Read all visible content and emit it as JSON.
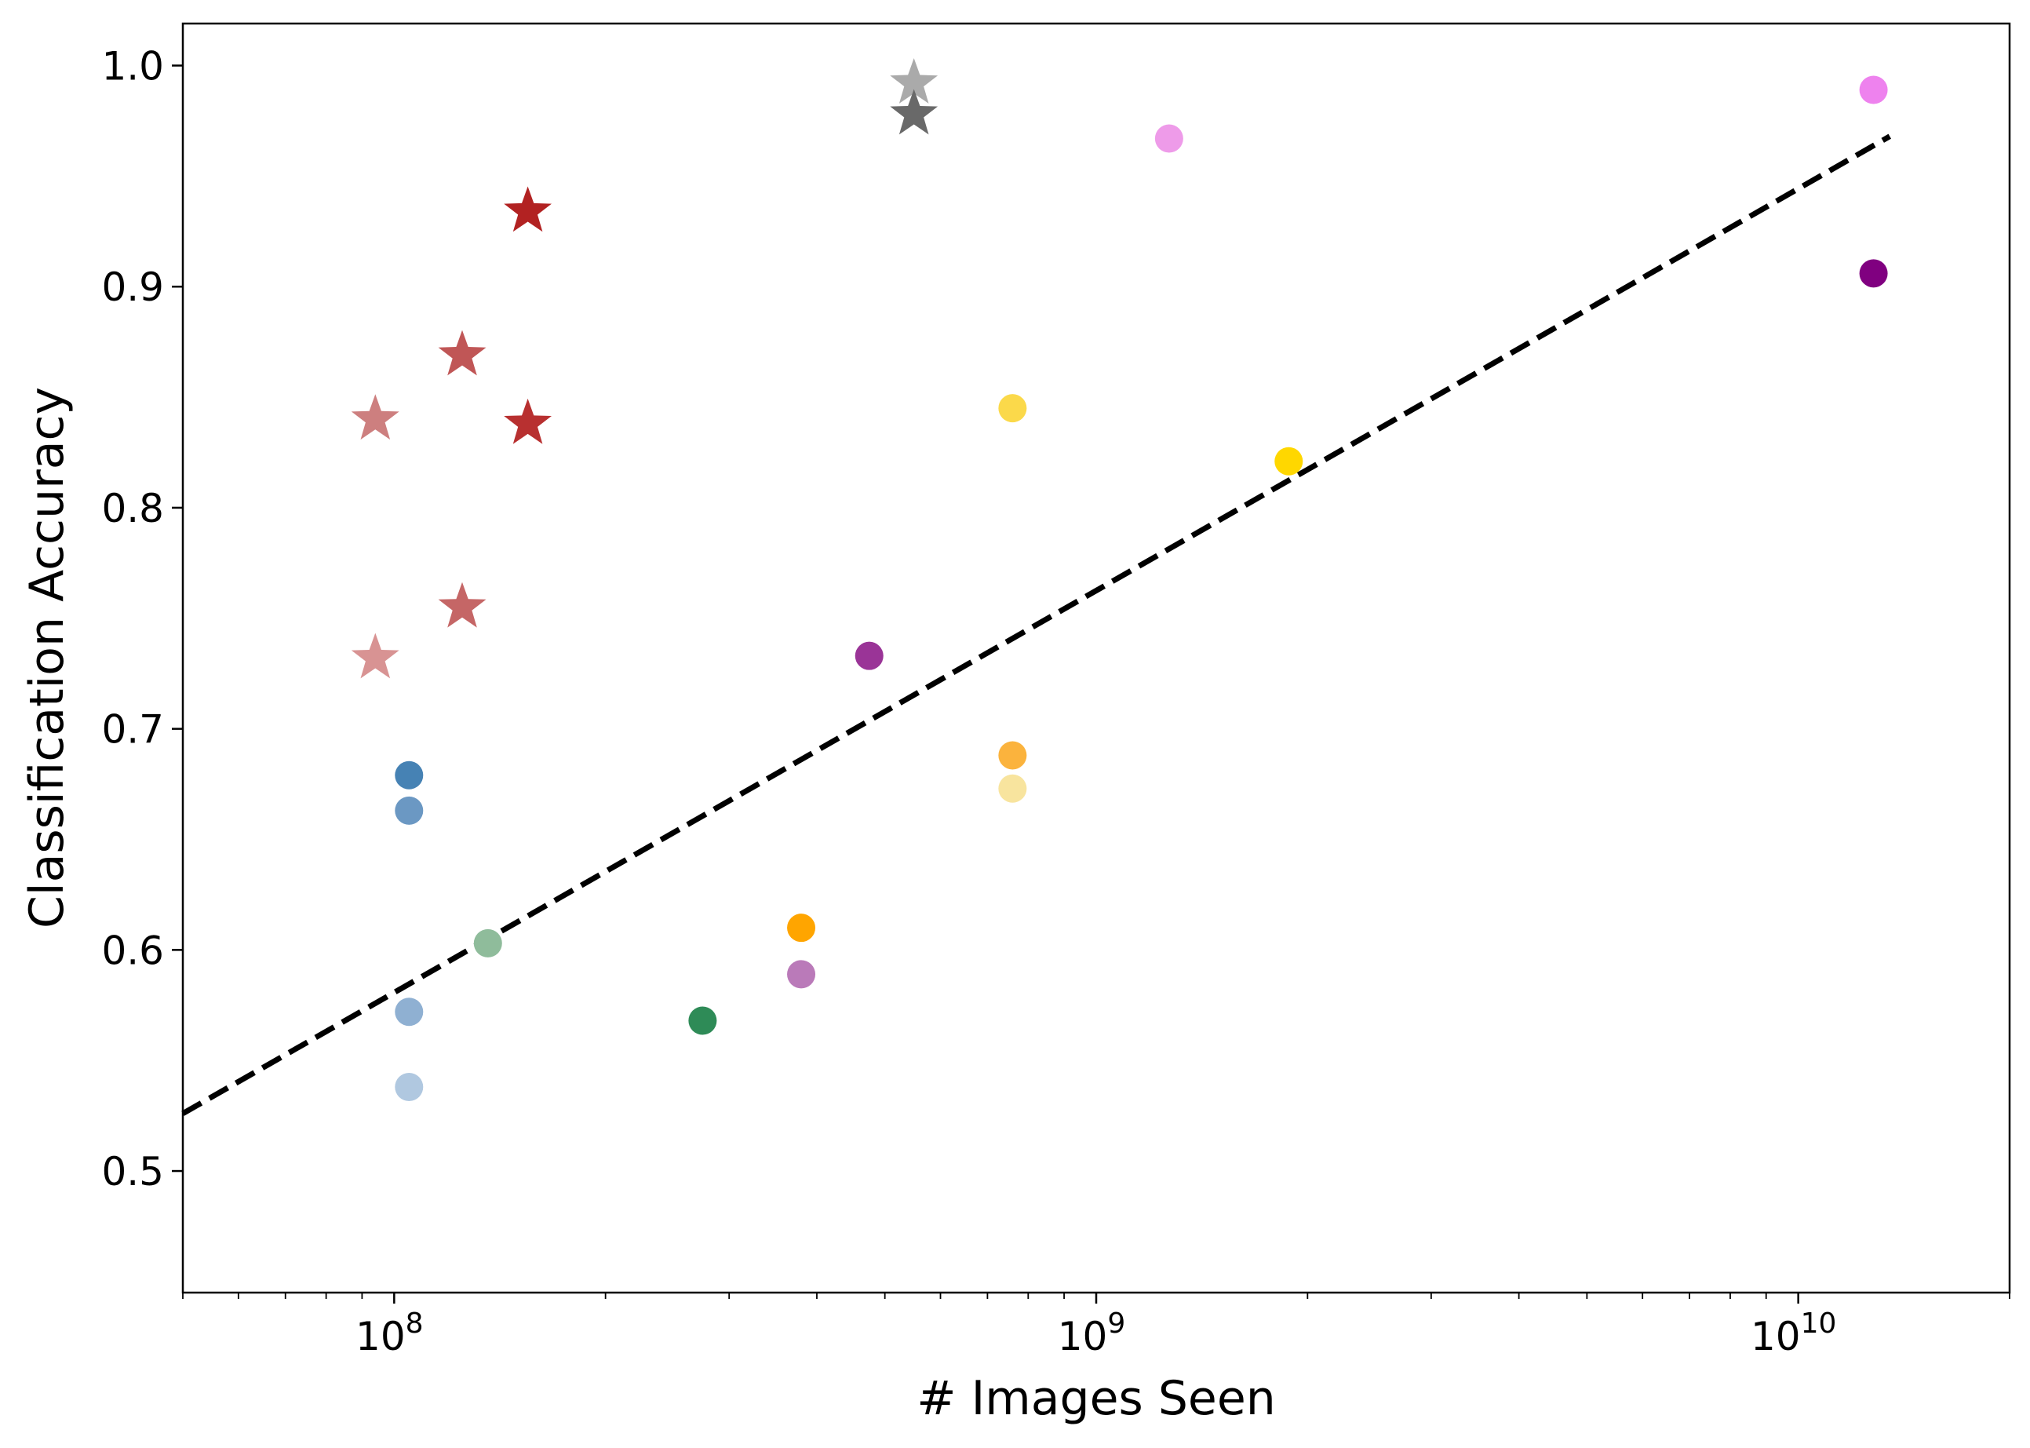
{
  "chart_data": {
    "type": "scatter",
    "title": "",
    "xlabel": "# Images Seen",
    "ylabel": "Classification Accuracy",
    "xscale": "log",
    "xlim": [
      50000000,
      20000000000
    ],
    "ylim": [
      0.445,
      1.019
    ],
    "grid": false,
    "legend": "none",
    "x_ticks": [
      {
        "value": 100000000,
        "base": "10",
        "exp": "8"
      },
      {
        "value": 1000000000,
        "base": "10",
        "exp": "9"
      },
      {
        "value": 10000000000,
        "base": "10",
        "exp": "10"
      }
    ],
    "y_ticks": [
      {
        "value": 0.5,
        "label": "0.5"
      },
      {
        "value": 0.6,
        "label": "0.6"
      },
      {
        "value": 0.7,
        "label": "0.7"
      },
      {
        "value": 0.8,
        "label": "0.8"
      },
      {
        "value": 0.9,
        "label": "0.9"
      },
      {
        "value": 1.0,
        "label": "1.0"
      }
    ],
    "trend_line": {
      "style": "dashed",
      "color": "#000000",
      "from": {
        "x": 50000000,
        "y": 0.526
      },
      "to": {
        "x": 13500000000,
        "y": 0.968
      }
    },
    "points": [
      {
        "x": 94000000,
        "y": 0.84,
        "marker": "star",
        "color": "#cd7f7f"
      },
      {
        "x": 94000000,
        "y": 0.732,
        "marker": "star",
        "color": "#d89393"
      },
      {
        "x": 125000000,
        "y": 0.869,
        "marker": "star",
        "color": "#c05656"
      },
      {
        "x": 125000000,
        "y": 0.755,
        "marker": "star",
        "color": "#c56666"
      },
      {
        "x": 155000000,
        "y": 0.934,
        "marker": "star",
        "color": "#b22222"
      },
      {
        "x": 155000000,
        "y": 0.838,
        "marker": "star",
        "color": "#b83030"
      },
      {
        "x": 550000000,
        "y": 0.992,
        "marker": "star",
        "color": "#aaaaaa"
      },
      {
        "x": 550000000,
        "y": 0.978,
        "marker": "star",
        "color": "#696969"
      },
      {
        "x": 105000000,
        "y": 0.679,
        "marker": "circle",
        "color": "#4682b4"
      },
      {
        "x": 105000000,
        "y": 0.663,
        "marker": "circle",
        "color": "#6b98c3"
      },
      {
        "x": 105000000,
        "y": 0.572,
        "marker": "circle",
        "color": "#8fb0d2"
      },
      {
        "x": 105000000,
        "y": 0.538,
        "marker": "circle",
        "color": "#b0c8e0"
      },
      {
        "x": 136000000,
        "y": 0.603,
        "marker": "circle",
        "color": "#8fbc9b"
      },
      {
        "x": 275000000,
        "y": 0.568,
        "marker": "circle",
        "color": "#2e8b57"
      },
      {
        "x": 380000000,
        "y": 0.61,
        "marker": "circle",
        "color": "#ffa500"
      },
      {
        "x": 380000000,
        "y": 0.589,
        "marker": "circle",
        "color": "#ba7ab9"
      },
      {
        "x": 475000000,
        "y": 0.733,
        "marker": "circle",
        "color": "#9a3497"
      },
      {
        "x": 760000000,
        "y": 0.845,
        "marker": "circle",
        "color": "#fbd94a"
      },
      {
        "x": 760000000,
        "y": 0.688,
        "marker": "circle",
        "color": "#fbb33d"
      },
      {
        "x": 760000000,
        "y": 0.673,
        "marker": "circle",
        "color": "#f8e49e"
      },
      {
        "x": 1270000000,
        "y": 0.967,
        "marker": "circle",
        "color": "#ee9be9"
      },
      {
        "x": 1880000000,
        "y": 0.821,
        "marker": "circle",
        "color": "#ffd700"
      },
      {
        "x": 12800000000,
        "y": 0.989,
        "marker": "circle",
        "color": "#ee82ee"
      },
      {
        "x": 12800000000,
        "y": 0.906,
        "marker": "circle",
        "color": "#800080"
      }
    ]
  }
}
